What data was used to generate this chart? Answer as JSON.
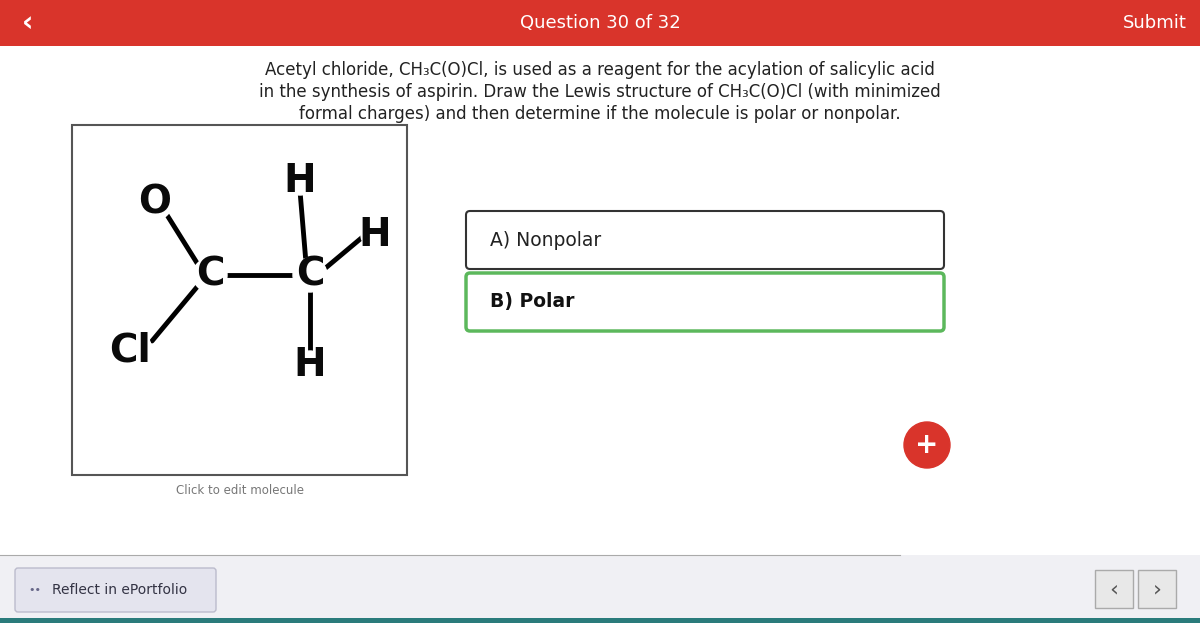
{
  "title": "Question 30 of 32",
  "submit_text": "Submit",
  "header_bg": "#d9342b",
  "header_text_color": "#ffffff",
  "body_bg": "#ffffff",
  "question_text_line1": "Acetyl chloride, CH₃C(O)Cl, is used as a reagent for the acylation of salicylic acid",
  "question_text_line2": "in the synthesis of aspirin. Draw the Lewis structure of CH₃C(O)Cl (with minimized",
  "question_text_line3": "formal charges) and then determine if the molecule is polar or nonpolar.",
  "option_A": "A) Nonpolar",
  "option_B": "B) Polar",
  "option_B_border_color": "#5cb85c",
  "option_A_border_color": "#333333",
  "molecule_box_border": "#555555",
  "click_label": "Click to edit molecule",
  "reflect_text": "Reflect in ePortfolio",
  "plus_button_color": "#d9342b",
  "bottom_bar_color": "#2a7b7b",
  "nav_bg": "#e8e8ee",
  "back_arrow": "‹",
  "forward_arrow": "›"
}
